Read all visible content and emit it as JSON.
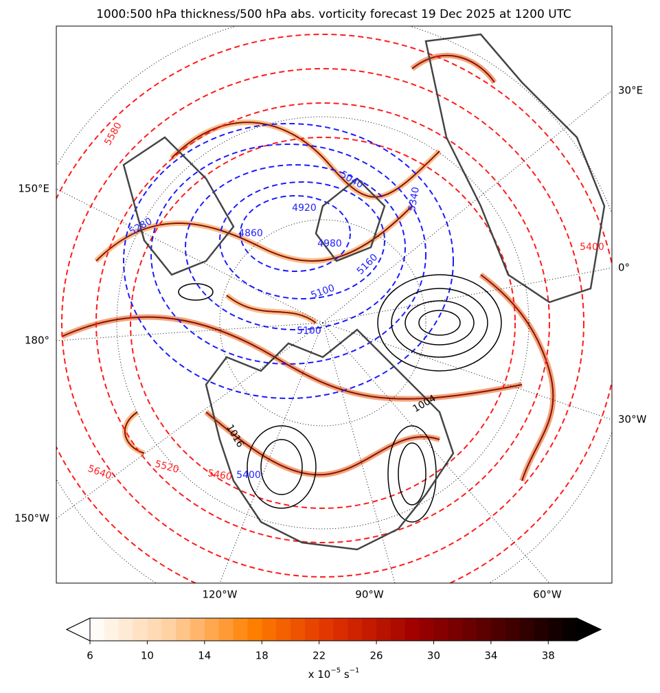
{
  "title": "1000:500 hPa thickness/500 hPa abs. vorticity forecast 19 Dec 2025 at 1200 UTC",
  "graticule_labels": {
    "left": [
      "150°E",
      "180°",
      "150°W"
    ],
    "bottom": [
      "120°W",
      "90°W",
      "60°W"
    ],
    "right": [
      "30°E",
      "0°",
      "30°W"
    ]
  },
  "contour_labels": [
    {
      "text": "5580",
      "color": "#ff2020"
    },
    {
      "text": "5280",
      "color": "#2020ff"
    },
    {
      "text": "4920",
      "color": "#2020ff"
    },
    {
      "text": "5040",
      "color": "#2020ff"
    },
    {
      "text": "4860",
      "color": "#2020ff"
    },
    {
      "text": "4980",
      "color": "#2020ff"
    },
    {
      "text": "5160",
      "color": "#2020ff"
    },
    {
      "text": "5100",
      "color": "#2020ff"
    },
    {
      "text": "5100",
      "color": "#2020ff"
    },
    {
      "text": "5340",
      "color": "#2020ff"
    },
    {
      "text": "5400",
      "color": "#ff2020"
    },
    {
      "text": "5640",
      "color": "#ff2020"
    },
    {
      "text": "5520",
      "color": "#ff2020"
    },
    {
      "text": "5460",
      "color": "#ff2020"
    },
    {
      "text": "5400",
      "color": "#2020ff"
    },
    {
      "text": "1004",
      "color": "#000000"
    },
    {
      "text": "1016",
      "color": "#000000"
    }
  ],
  "colorbar": {
    "clim": [
      6,
      40
    ],
    "step": 1,
    "ticks": [
      6,
      10,
      14,
      18,
      22,
      26,
      30,
      34,
      38
    ],
    "colormap": [
      "#ffffff",
      "#ffd0a0",
      "#ff8000",
      "#e03000",
      "#a00000",
      "#500000",
      "#000000"
    ],
    "label": [
      "x 10",
      "−5",
      " s",
      "−1"
    ]
  }
}
